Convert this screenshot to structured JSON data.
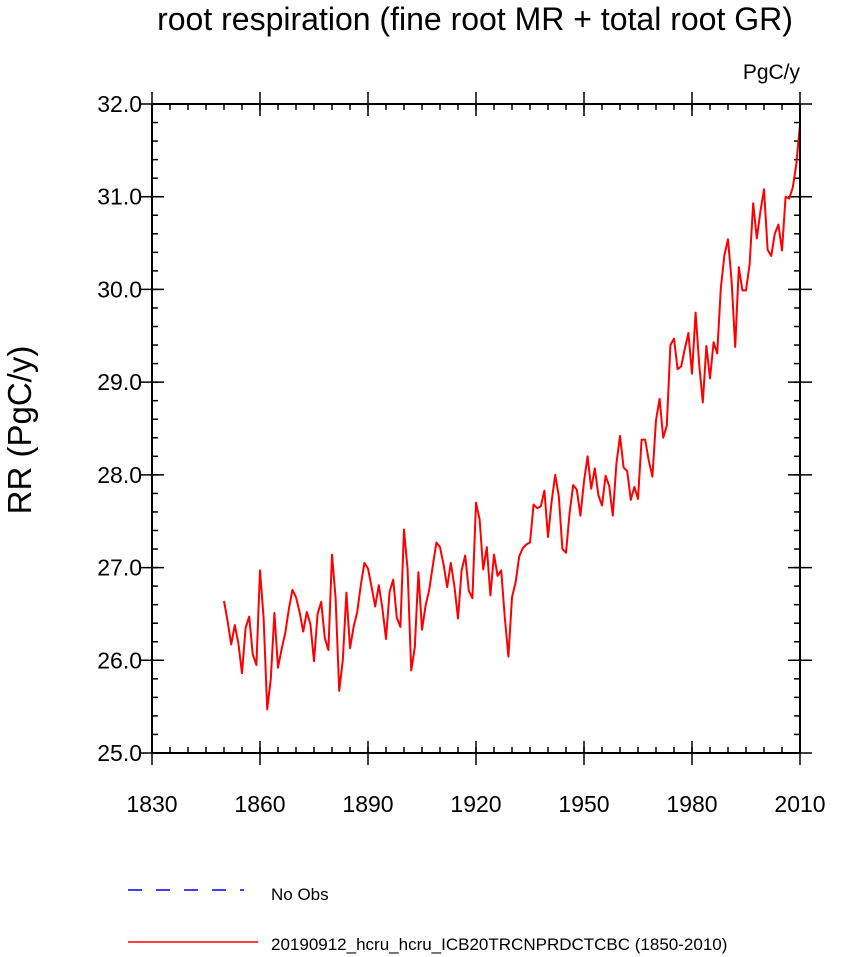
{
  "chart_data": {
    "type": "line",
    "title": "root respiration (fine root MR + total root GR)",
    "units": "PgC/y",
    "xlabel": "",
    "ylabel": "RR  (PgC/y)",
    "xlim": [
      1830,
      2010
    ],
    "ylim": [
      25.0,
      32.0
    ],
    "xticks": [
      1830,
      1860,
      1890,
      1920,
      1950,
      1980,
      2010
    ],
    "xtick_labels": [
      "1830",
      "1860",
      "1890",
      "1920",
      "1950",
      "1980",
      "2010"
    ],
    "yticks": [
      25.0,
      26.0,
      27.0,
      28.0,
      29.0,
      30.0,
      31.0,
      32.0
    ],
    "ytick_labels": [
      "25.0",
      "26.0",
      "27.0",
      "28.0",
      "29.0",
      "30.0",
      "31.0",
      "32.0"
    ],
    "x_minor_step": 5,
    "y_minor_step": 0.2,
    "legend": [
      {
        "label": "No Obs",
        "style": "dashed",
        "color": "#0000ff"
      },
      {
        "label": "20190912_hcru_hcru_ICB20TRCNPRDCTCBC (1850-2010)",
        "style": "solid",
        "color": "#ff0000"
      }
    ],
    "series": [
      {
        "name": "20190912_hcru_hcru_ICB20TRCNPRDCTCBC (1850-2010)",
        "color": "#ff0000",
        "x_start": 1850,
        "values": [
          26.64,
          26.42,
          26.17,
          26.38,
          26.18,
          25.86,
          26.35,
          26.47,
          26.06,
          25.95,
          26.97,
          26.46,
          25.47,
          25.8,
          26.51,
          25.92,
          26.12,
          26.29,
          26.55,
          26.76,
          26.68,
          26.52,
          26.31,
          26.52,
          26.39,
          25.99,
          26.5,
          26.63,
          26.24,
          26.11,
          27.14,
          26.67,
          25.67,
          26.0,
          26.73,
          26.13,
          26.36,
          26.52,
          26.81,
          27.05,
          26.99,
          26.79,
          26.58,
          26.81,
          26.56,
          26.23,
          26.74,
          26.87,
          26.46,
          26.36,
          27.41,
          26.98,
          25.89,
          26.14,
          26.95,
          26.33,
          26.59,
          26.76,
          27.02,
          27.27,
          27.22,
          27.03,
          26.79,
          27.05,
          26.8,
          26.45,
          26.97,
          27.13,
          26.75,
          26.67,
          27.7,
          27.52,
          26.98,
          27.22,
          26.7,
          27.14,
          26.91,
          26.97,
          26.46,
          26.04,
          26.68,
          26.84,
          27.12,
          27.21,
          27.25,
          27.27,
          27.68,
          27.64,
          27.66,
          27.83,
          27.33,
          27.71,
          28.0,
          27.77,
          27.2,
          27.16,
          27.59,
          27.89,
          27.84,
          27.56,
          27.93,
          28.2,
          27.85,
          28.07,
          27.78,
          27.67,
          27.99,
          27.88,
          27.56,
          28.12,
          28.42,
          28.08,
          28.04,
          27.73,
          27.87,
          27.74,
          28.38,
          28.38,
          28.15,
          27.98,
          28.59,
          28.82,
          28.4,
          28.53,
          29.4,
          29.47,
          29.14,
          29.17,
          29.36,
          29.53,
          29.09,
          29.75,
          29.19,
          28.78,
          29.39,
          29.04,
          29.43,
          29.31,
          30.01,
          30.37,
          30.54,
          30.09,
          29.38,
          30.24,
          29.99,
          29.99,
          30.27,
          30.93,
          30.55,
          30.84,
          31.08,
          30.43,
          30.36,
          30.6,
          30.7,
          30.42,
          31.0,
          30.98,
          31.1,
          31.36,
          31.78
        ]
      }
    ]
  }
}
